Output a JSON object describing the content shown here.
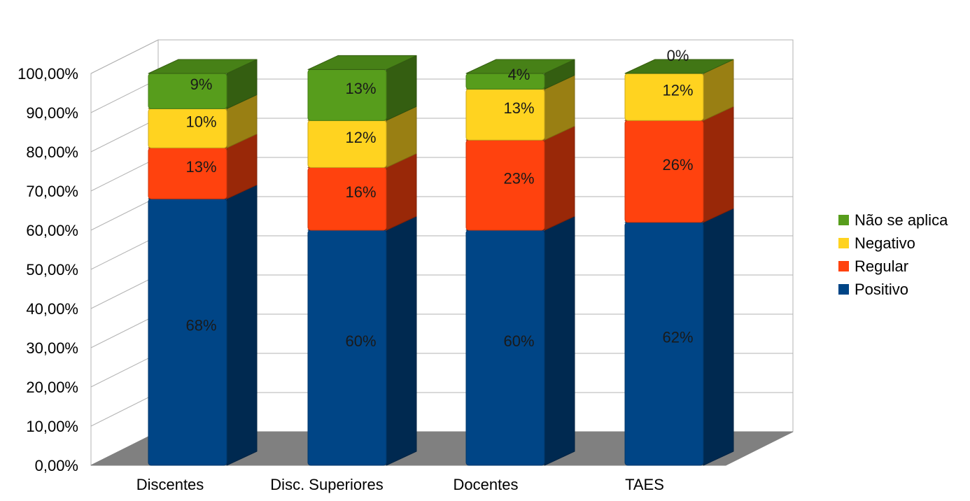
{
  "chart_data": {
    "type": "bar",
    "stacked": true,
    "three_d": true,
    "categories": [
      "Discentes",
      "Disc. Superiores",
      "Docentes",
      "TAES"
    ],
    "series": [
      {
        "name": "Positivo",
        "color": "#004586",
        "values": [
          68,
          60,
          60,
          62
        ],
        "labels": [
          "68%",
          "60%",
          "60%",
          "62%"
        ]
      },
      {
        "name": "Regular",
        "color": "#ff420e",
        "values": [
          13,
          16,
          23,
          26
        ],
        "labels": [
          "13%",
          "16%",
          "23%",
          "26%"
        ]
      },
      {
        "name": "Negativo",
        "color": "#ffd320",
        "values": [
          10,
          12,
          13,
          12
        ],
        "labels": [
          "10%",
          "12%",
          "13%",
          "12%"
        ]
      },
      {
        "name": "Não se aplica",
        "color": "#579d1c",
        "values": [
          9,
          13,
          4,
          0
        ],
        "labels": [
          "9%",
          "13%",
          "4%",
          "0%"
        ]
      }
    ],
    "yticks": [
      "0,00%",
      "10,00%",
      "20,00%",
      "30,00%",
      "40,00%",
      "50,00%",
      "60,00%",
      "70,00%",
      "80,00%",
      "90,00%",
      "100,00%"
    ],
    "ylim": [
      0,
      100
    ],
    "grid": true,
    "legend_position": "right",
    "legend_order": [
      "Não se aplica",
      "Negativo",
      "Regular",
      "Positivo"
    ]
  }
}
